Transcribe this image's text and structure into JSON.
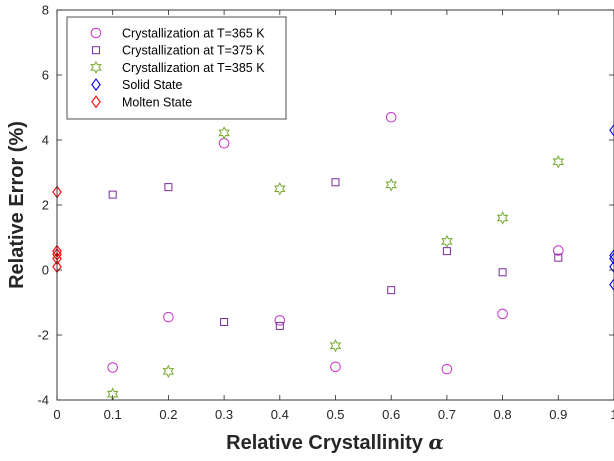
{
  "chart_data": {
    "type": "scatter",
    "title": "",
    "xlabel": "Relative Crystallinity",
    "xlabel_symbol": "α",
    "ylabel": "Relative Error (%)",
    "xlim": [
      0,
      1
    ],
    "ylim": [
      -4,
      8
    ],
    "xticks": [
      0,
      0.1,
      0.2,
      0.3,
      0.4,
      0.5,
      0.6,
      0.7,
      0.8,
      0.9,
      1
    ],
    "xtick_labels": [
      "0",
      "0.1",
      "0.2",
      "0.3",
      "0.4",
      "0.5",
      "0.6",
      "0.7",
      "0.8",
      "0.9",
      "1"
    ],
    "yticks": [
      -4,
      -2,
      0,
      2,
      4,
      6,
      8
    ],
    "ytick_labels": [
      "-4",
      "-2",
      "0",
      "2",
      "4",
      "6",
      "8"
    ],
    "grid": false,
    "legend_position": "top-left",
    "series": [
      {
        "name": "Crystallization at T=365 K",
        "marker": "circle",
        "color": "#cc33cc",
        "points": [
          [
            0.1,
            -3.0
          ],
          [
            0.2,
            -1.45
          ],
          [
            0.3,
            3.9
          ],
          [
            0.4,
            -1.55
          ],
          [
            0.5,
            -2.98
          ],
          [
            0.6,
            4.7
          ],
          [
            0.7,
            -3.05
          ],
          [
            0.8,
            -1.35
          ],
          [
            0.9,
            0.6
          ]
        ]
      },
      {
        "name": "Crystallization at T=375 K",
        "marker": "square",
        "color": "#7a2b9e",
        "points": [
          [
            0.1,
            2.32
          ],
          [
            0.2,
            2.55
          ],
          [
            0.3,
            -1.6
          ],
          [
            0.4,
            -1.72
          ],
          [
            0.5,
            2.7
          ],
          [
            0.6,
            -0.62
          ],
          [
            0.7,
            0.58
          ],
          [
            0.8,
            -0.07
          ],
          [
            0.9,
            0.38
          ]
        ]
      },
      {
        "name": "Crystallization at T=385 K",
        "marker": "hexagram",
        "color": "#77ac30",
        "points": [
          [
            0.1,
            -3.82
          ],
          [
            0.2,
            -3.12
          ],
          [
            0.3,
            4.22
          ],
          [
            0.4,
            2.5
          ],
          [
            0.5,
            -2.33
          ],
          [
            0.6,
            2.62
          ],
          [
            0.7,
            0.88
          ],
          [
            0.8,
            1.6
          ],
          [
            0.9,
            3.33
          ]
        ]
      },
      {
        "name": "Solid State",
        "marker": "diamond",
        "color": "#0000ff",
        "points": [
          [
            1,
            4.3
          ],
          [
            1,
            0.45
          ],
          [
            1,
            0.35
          ],
          [
            1,
            0.1
          ],
          [
            1,
            -0.45
          ]
        ]
      },
      {
        "name": "Molten State",
        "marker": "diamond",
        "color": "#ff0000",
        "points": [
          [
            0,
            2.4
          ],
          [
            0,
            0.58
          ],
          [
            0,
            0.48
          ],
          [
            0,
            0.35
          ],
          [
            0,
            0.1
          ]
        ]
      }
    ]
  }
}
